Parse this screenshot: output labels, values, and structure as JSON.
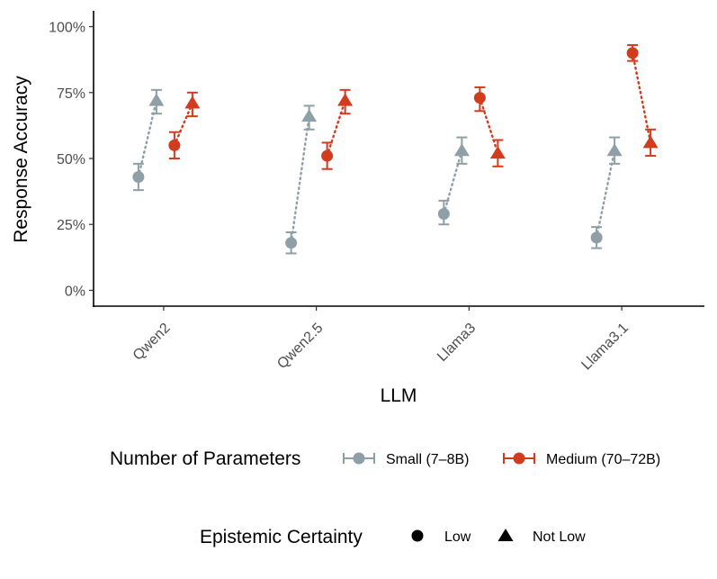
{
  "chart_data": {
    "type": "scatter",
    "xlabel": "LLM",
    "ylabel": "Response Accuracy",
    "categories": [
      "Qwen2",
      "Qwen2.5",
      "Llama3",
      "Llama3.1"
    ],
    "ylim": [
      -0.06,
      1.06
    ],
    "yticks": [
      0,
      0.25,
      0.5,
      0.75,
      1.0
    ],
    "ytick_labels": [
      "0%",
      "25%",
      "50%",
      "75%",
      "100%"
    ],
    "grid": false,
    "colors": {
      "small": "#8e9fa5",
      "medium": "#d13b1e"
    },
    "series": [
      {
        "name": "Small (7–8B)",
        "size": "small",
        "certainty": "low",
        "values": [
          0.43,
          0.18,
          0.29,
          0.2
        ],
        "lower": [
          0.38,
          0.14,
          0.25,
          0.16
        ],
        "upper": [
          0.48,
          0.22,
          0.34,
          0.24
        ]
      },
      {
        "name": "Small (7–8B)",
        "size": "small",
        "certainty": "not_low",
        "values": [
          0.72,
          0.66,
          0.53,
          0.53
        ],
        "lower": [
          0.67,
          0.61,
          0.48,
          0.48
        ],
        "upper": [
          0.76,
          0.7,
          0.58,
          0.58
        ]
      },
      {
        "name": "Medium (70–72B)",
        "size": "medium",
        "certainty": "low",
        "values": [
          0.55,
          0.51,
          0.73,
          0.9
        ],
        "lower": [
          0.5,
          0.46,
          0.68,
          0.87
        ],
        "upper": [
          0.6,
          0.56,
          0.77,
          0.93
        ]
      },
      {
        "name": "Medium (70–72B)",
        "size": "medium",
        "certainty": "not_low",
        "values": [
          0.71,
          0.72,
          0.52,
          0.56
        ],
        "lower": [
          0.66,
          0.67,
          0.47,
          0.51
        ],
        "upper": [
          0.75,
          0.76,
          0.57,
          0.61
        ]
      }
    ],
    "legend_size": {
      "title": "Number of Parameters",
      "entries": [
        {
          "label": "Small (7–8B)",
          "size": "small"
        },
        {
          "label": "Medium (70–72B)",
          "size": "medium"
        }
      ]
    },
    "legend_certainty": {
      "title": "Epistemic Certainty",
      "entries": [
        {
          "label": "Low",
          "shape": "circle"
        },
        {
          "label": "Not Low",
          "shape": "triangle"
        }
      ]
    },
    "legend_position": "bottom"
  }
}
